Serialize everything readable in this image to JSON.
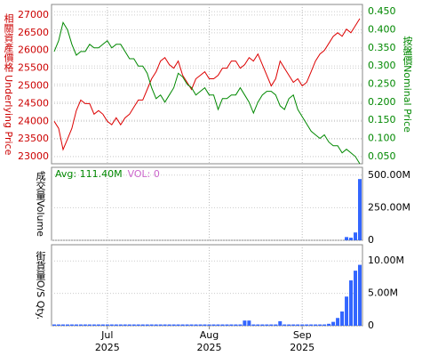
{
  "chart_data": [
    {
      "type": "line",
      "categories": [
        null,
        null,
        null,
        null,
        null,
        null,
        null,
        null,
        null,
        null,
        null,
        null,
        "Jul",
        null,
        null,
        null,
        null,
        null,
        null,
        null,
        null,
        null,
        null,
        null,
        null,
        null,
        null,
        null,
        null,
        null,
        null,
        null,
        null,
        null,
        null,
        "Aug",
        null,
        null,
        null,
        null,
        null,
        null,
        null,
        null,
        null,
        null,
        null,
        null,
        null,
        null,
        null,
        null,
        null,
        null,
        null,
        null,
        "Sep",
        null,
        null,
        null,
        null,
        null,
        null,
        null,
        null,
        null,
        null,
        null,
        null,
        null
      ],
      "category_years": [
        null,
        null,
        null,
        null,
        null,
        null,
        null,
        null,
        null,
        null,
        null,
        null,
        "2025",
        null,
        null,
        null,
        null,
        null,
        null,
        null,
        null,
        null,
        null,
        null,
        null,
        null,
        null,
        null,
        null,
        null,
        null,
        null,
        null,
        null,
        null,
        "2025",
        null,
        null,
        null,
        null,
        null,
        null,
        null,
        null,
        null,
        null,
        null,
        null,
        null,
        null,
        null,
        null,
        null,
        null,
        null,
        null,
        "2025",
        null,
        null,
        null,
        null,
        null,
        null,
        null,
        null,
        null,
        null,
        null,
        null,
        null
      ],
      "ylabel": "相關資產價格 Underlying Price",
      "y2label": "按盤價Nominal Price",
      "ylim": [
        22800,
        27300
      ],
      "yticks": [
        23000,
        23500,
        24000,
        24500,
        25000,
        25500,
        26000,
        26500,
        27000
      ],
      "y2lim": [
        0.03,
        0.47
      ],
      "y2ticks": [
        {
          "value": 0.05,
          "label": "0.050"
        },
        {
          "value": 0.1,
          "label": "0.100"
        },
        {
          "value": 0.15,
          "label": "0.150"
        },
        {
          "value": 0.2,
          "label": "0.200"
        },
        {
          "value": 0.25,
          "label": "0.250"
        },
        {
          "value": 0.3,
          "label": "0.300"
        },
        {
          "value": 0.35,
          "label": "0.350"
        },
        {
          "value": 0.4,
          "label": "0.400"
        },
        {
          "value": 0.45,
          "label": "0.450"
        }
      ],
      "grid": true,
      "series": [
        {
          "color": "#dd0000",
          "values": [
            24000,
            23800,
            23200,
            23500,
            23800,
            24300,
            24600,
            24500,
            24500,
            24200,
            24300,
            24200,
            24000,
            23900,
            24100,
            23900,
            24100,
            24200,
            24400,
            24600,
            24600,
            24900,
            25200,
            25400,
            25700,
            25800,
            25600,
            25500,
            25700,
            25300,
            25100,
            24900,
            25200,
            25300,
            25400,
            25200,
            25200,
            25300,
            25500,
            25500,
            25700,
            25700,
            25500,
            25600,
            25800,
            25700,
            25900,
            25600,
            25300,
            25000,
            25200,
            25700,
            25500,
            25300,
            25100,
            25200,
            25000,
            25100,
            25400,
            25700,
            25900,
            26000,
            26200,
            26400,
            26500,
            26400,
            26600,
            26500,
            26700,
            26900
          ]
        },
        {
          "color": "#008800",
          "axis": "y2",
          "values": [
            0.34,
            0.37,
            0.42,
            0.4,
            0.36,
            0.33,
            0.34,
            0.34,
            0.36,
            0.35,
            0.35,
            0.36,
            0.37,
            0.35,
            0.36,
            0.36,
            0.34,
            0.32,
            0.32,
            0.3,
            0.3,
            0.28,
            0.24,
            0.21,
            0.22,
            0.2,
            0.22,
            0.24,
            0.28,
            0.27,
            0.25,
            0.24,
            0.22,
            0.23,
            0.24,
            0.22,
            0.22,
            0.18,
            0.21,
            0.21,
            0.22,
            0.22,
            0.24,
            0.22,
            0.2,
            0.17,
            0.2,
            0.22,
            0.23,
            0.23,
            0.22,
            0.19,
            0.18,
            0.21,
            0.22,
            0.18,
            0.16,
            0.14,
            0.12,
            0.11,
            0.1,
            0.11,
            0.09,
            0.08,
            0.08,
            0.06,
            0.07,
            0.06,
            0.05,
            0.03
          ]
        }
      ]
    },
    {
      "type": "bar",
      "ylabel": "成交量Volume",
      "annotations": [
        {
          "text": "Avg: 111.40M",
          "color": "#008800"
        },
        {
          "text": "VOL: 0",
          "color": "#cc66cc"
        }
      ],
      "ylim": [
        0,
        560000000
      ],
      "yticks": [
        0,
        {
          "value": 250000000,
          "label": "250.00M"
        },
        {
          "value": 500000000,
          "label": "500.00M"
        }
      ],
      "grid": true,
      "color": "#3366ff",
      "values": [
        0,
        0,
        0,
        0,
        0,
        0,
        0,
        0,
        0,
        0,
        0,
        0,
        0,
        0,
        0,
        0,
        0,
        0,
        0,
        0,
        0,
        0,
        0,
        0,
        0,
        0,
        0,
        0,
        0,
        0,
        0,
        0,
        0,
        0,
        0,
        0,
        0,
        0,
        0,
        0,
        0,
        0,
        0,
        0,
        0,
        0,
        0,
        0,
        0,
        0,
        0,
        0,
        0,
        0,
        0,
        0,
        0,
        0,
        0,
        0,
        0,
        0,
        0,
        0,
        0,
        0,
        25000000,
        20000000,
        60000000,
        470000000
      ]
    },
    {
      "type": "bar",
      "ylabel": "街貨量O/S Qty.",
      "ylim": [
        0,
        12500000
      ],
      "yticks": [
        0,
        {
          "value": 5000000,
          "label": "5.00M"
        },
        {
          "value": 10000000,
          "label": "10.00M"
        }
      ],
      "grid": true,
      "color": "#3366ff",
      "values": [
        200000,
        200000,
        200000,
        200000,
        200000,
        200000,
        200000,
        200000,
        200000,
        200000,
        200000,
        200000,
        200000,
        200000,
        200000,
        200000,
        200000,
        200000,
        200000,
        200000,
        200000,
        200000,
        200000,
        200000,
        200000,
        200000,
        200000,
        200000,
        200000,
        200000,
        200000,
        200000,
        200000,
        200000,
        200000,
        200000,
        200000,
        200000,
        200000,
        200000,
        200000,
        200000,
        200000,
        800000,
        800000,
        200000,
        200000,
        200000,
        200000,
        200000,
        200000,
        700000,
        200000,
        200000,
        200000,
        200000,
        200000,
        200000,
        200000,
        200000,
        200000,
        200000,
        300000,
        600000,
        1200000,
        2200000,
        4500000,
        7000000,
        8500000,
        9400000
      ]
    }
  ]
}
